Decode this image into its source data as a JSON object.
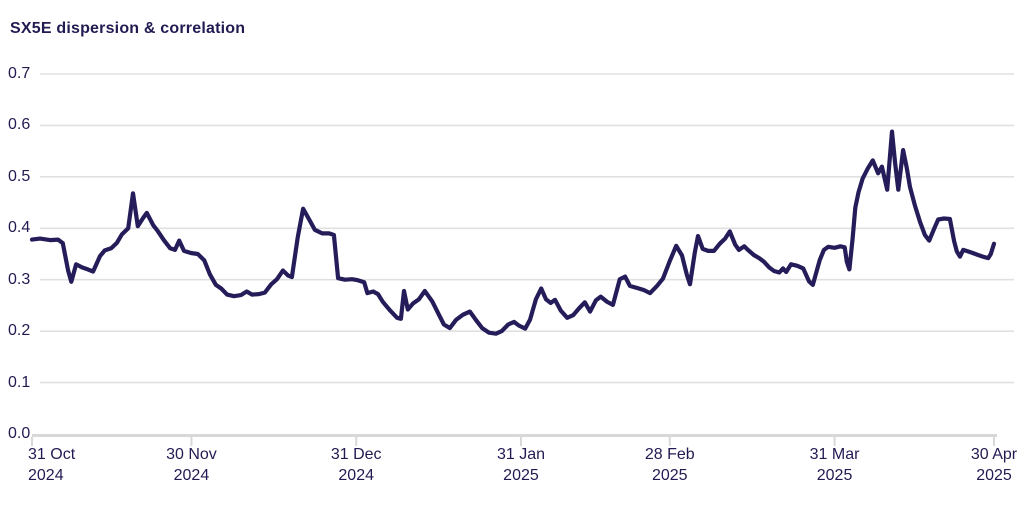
{
  "title": "SX5E dispersion & correlation",
  "colors": {
    "line": "#251d5a",
    "text": "#221b52",
    "gridline": "#e0e0e0",
    "axis": "#d8d8d8",
    "background": "#ffffff"
  },
  "chart_data": {
    "type": "line",
    "title": "SX5E dispersion & correlation",
    "xlabel": "",
    "ylabel": "",
    "ylim": [
      0,
      0.7
    ],
    "grid": "horizontal",
    "legend": "none",
    "x_unit": "days since 31 Oct 2024 (positions estimated from plot)",
    "y_ticks": [
      {
        "label": "0.0",
        "value": 0.0
      },
      {
        "label": "0.1",
        "value": 0.1
      },
      {
        "label": "0.2",
        "value": 0.2
      },
      {
        "label": "0.3",
        "value": 0.3
      },
      {
        "label": "0.4",
        "value": 0.4
      },
      {
        "label": "0.5",
        "value": 0.5
      },
      {
        "label": "0.6",
        "value": 0.6
      },
      {
        "label": "0.7",
        "value": 0.7
      }
    ],
    "x_ticks": [
      {
        "day": 0,
        "line1": "31 Oct",
        "line2": "2024",
        "align": "left"
      },
      {
        "day": 30,
        "line1": "30 Nov",
        "line2": "2024",
        "align": "center"
      },
      {
        "day": 61,
        "line1": "31 Dec",
        "line2": "2024",
        "align": "center"
      },
      {
        "day": 92,
        "line1": "31 Jan",
        "line2": "2025",
        "align": "center"
      },
      {
        "day": 120,
        "line1": "28 Feb",
        "line2": "2025",
        "align": "center"
      },
      {
        "day": 151,
        "line1": "31 Mar",
        "line2": "2025",
        "align": "center"
      },
      {
        "day": 181,
        "line1": "30 Apr",
        "line2": "2025",
        "align": "center"
      }
    ],
    "series": [
      {
        "name": "SX5E dispersion & correlation",
        "points": [
          [
            0,
            0.378
          ],
          [
            1.5,
            0.38
          ],
          [
            3.4,
            0.377
          ],
          [
            4.9,
            0.378
          ],
          [
            5.8,
            0.371
          ],
          [
            6.8,
            0.318
          ],
          [
            7.4,
            0.296
          ],
          [
            8.3,
            0.33
          ],
          [
            9.4,
            0.324
          ],
          [
            10.5,
            0.32
          ],
          [
            11.5,
            0.316
          ],
          [
            12.8,
            0.346
          ],
          [
            13.7,
            0.357
          ],
          [
            14.9,
            0.361
          ],
          [
            16,
            0.372
          ],
          [
            16.9,
            0.388
          ],
          [
            18.1,
            0.4
          ],
          [
            19,
            0.468
          ],
          [
            19.9,
            0.404
          ],
          [
            20.9,
            0.42
          ],
          [
            21.6,
            0.43
          ],
          [
            22.8,
            0.406
          ],
          [
            23.7,
            0.394
          ],
          [
            24.8,
            0.377
          ],
          [
            26,
            0.361
          ],
          [
            26.9,
            0.358
          ],
          [
            27.7,
            0.376
          ],
          [
            28.6,
            0.356
          ],
          [
            29.9,
            0.352
          ],
          [
            31.2,
            0.35
          ],
          [
            32.4,
            0.338
          ],
          [
            33.5,
            0.31
          ],
          [
            34.6,
            0.29
          ],
          [
            35.6,
            0.283
          ],
          [
            36.7,
            0.271
          ],
          [
            38,
            0.268
          ],
          [
            39.3,
            0.27
          ],
          [
            40.4,
            0.277
          ],
          [
            41.4,
            0.271
          ],
          [
            42.7,
            0.272
          ],
          [
            43.8,
            0.275
          ],
          [
            45,
            0.291
          ],
          [
            46.1,
            0.301
          ],
          [
            47.2,
            0.318
          ],
          [
            48.2,
            0.308
          ],
          [
            48.9,
            0.305
          ],
          [
            50,
            0.382
          ],
          [
            51,
            0.438
          ],
          [
            52.1,
            0.418
          ],
          [
            53.2,
            0.397
          ],
          [
            54.6,
            0.39
          ],
          [
            55.9,
            0.39
          ],
          [
            56.8,
            0.387
          ],
          [
            57.6,
            0.303
          ],
          [
            58.9,
            0.3
          ],
          [
            60.2,
            0.301
          ],
          [
            61.3,
            0.299
          ],
          [
            62.5,
            0.295
          ],
          [
            63.1,
            0.274
          ],
          [
            64.2,
            0.277
          ],
          [
            65.1,
            0.272
          ],
          [
            66,
            0.257
          ],
          [
            67.4,
            0.24
          ],
          [
            68.7,
            0.226
          ],
          [
            69.4,
            0.224
          ],
          [
            70,
            0.278
          ],
          [
            70.7,
            0.242
          ],
          [
            71.7,
            0.254
          ],
          [
            72.8,
            0.262
          ],
          [
            73.9,
            0.278
          ],
          [
            75.3,
            0.258
          ],
          [
            76.4,
            0.235
          ],
          [
            77.5,
            0.213
          ],
          [
            78.6,
            0.206
          ],
          [
            79.8,
            0.222
          ],
          [
            81.1,
            0.232
          ],
          [
            82.4,
            0.238
          ],
          [
            83.5,
            0.222
          ],
          [
            84.7,
            0.206
          ],
          [
            86,
            0.197
          ],
          [
            87.3,
            0.195
          ],
          [
            88.4,
            0.2
          ],
          [
            89.6,
            0.213
          ],
          [
            90.7,
            0.218
          ],
          [
            91.6,
            0.211
          ],
          [
            92.8,
            0.205
          ],
          [
            93.7,
            0.222
          ],
          [
            94.8,
            0.262
          ],
          [
            95.8,
            0.283
          ],
          [
            96.7,
            0.262
          ],
          [
            97.6,
            0.255
          ],
          [
            98.4,
            0.261
          ],
          [
            99.5,
            0.24
          ],
          [
            100.7,
            0.226
          ],
          [
            101.8,
            0.231
          ],
          [
            102.9,
            0.244
          ],
          [
            104,
            0.256
          ],
          [
            105,
            0.238
          ],
          [
            106.1,
            0.26
          ],
          [
            107,
            0.267
          ],
          [
            108.2,
            0.257
          ],
          [
            109.3,
            0.251
          ],
          [
            110.6,
            0.301
          ],
          [
            111.6,
            0.306
          ],
          [
            112.5,
            0.288
          ],
          [
            113.8,
            0.284
          ],
          [
            115.1,
            0.28
          ],
          [
            116.3,
            0.274
          ],
          [
            117.6,
            0.288
          ],
          [
            118.7,
            0.302
          ],
          [
            119.9,
            0.334
          ],
          [
            121.2,
            0.366
          ],
          [
            122.3,
            0.347
          ],
          [
            123.2,
            0.31
          ],
          [
            123.8,
            0.291
          ],
          [
            124.7,
            0.353
          ],
          [
            125.3,
            0.385
          ],
          [
            126.2,
            0.36
          ],
          [
            127.2,
            0.356
          ],
          [
            128.3,
            0.356
          ],
          [
            129.4,
            0.37
          ],
          [
            130.4,
            0.38
          ],
          [
            131.3,
            0.394
          ],
          [
            132.3,
            0.368
          ],
          [
            133,
            0.358
          ],
          [
            134,
            0.365
          ],
          [
            134.7,
            0.358
          ],
          [
            135.8,
            0.348
          ],
          [
            136.8,
            0.342
          ],
          [
            137.7,
            0.335
          ],
          [
            138.7,
            0.324
          ],
          [
            139.6,
            0.317
          ],
          [
            140.6,
            0.314
          ],
          [
            141.3,
            0.322
          ],
          [
            141.9,
            0.315
          ],
          [
            142.8,
            0.33
          ],
          [
            144,
            0.327
          ],
          [
            145.1,
            0.322
          ],
          [
            146.2,
            0.297
          ],
          [
            146.9,
            0.29
          ],
          [
            148.2,
            0.338
          ],
          [
            149,
            0.358
          ],
          [
            149.8,
            0.364
          ],
          [
            151,
            0.362
          ],
          [
            152.1,
            0.365
          ],
          [
            152.9,
            0.363
          ],
          [
            153.3,
            0.335
          ],
          [
            153.8,
            0.32
          ],
          [
            154.4,
            0.38
          ],
          [
            154.9,
            0.44
          ],
          [
            155.5,
            0.47
          ],
          [
            156.3,
            0.497
          ],
          [
            157.3,
            0.517
          ],
          [
            158.2,
            0.532
          ],
          [
            159.2,
            0.507
          ],
          [
            159.9,
            0.52
          ],
          [
            160.9,
            0.475
          ],
          [
            161.8,
            0.588
          ],
          [
            162.4,
            0.527
          ],
          [
            163,
            0.475
          ],
          [
            163.9,
            0.552
          ],
          [
            164.6,
            0.517
          ],
          [
            165.2,
            0.48
          ],
          [
            166.1,
            0.445
          ],
          [
            167.1,
            0.412
          ],
          [
            168,
            0.387
          ],
          [
            168.8,
            0.376
          ],
          [
            169.9,
            0.403
          ],
          [
            170.5,
            0.417
          ],
          [
            171.6,
            0.419
          ],
          [
            172.7,
            0.418
          ],
          [
            173.5,
            0.375
          ],
          [
            174,
            0.355
          ],
          [
            174.6,
            0.345
          ],
          [
            175.2,
            0.358
          ],
          [
            176.1,
            0.355
          ],
          [
            177,
            0.352
          ],
          [
            178,
            0.348
          ],
          [
            178.9,
            0.345
          ],
          [
            179.9,
            0.342
          ],
          [
            180.4,
            0.35
          ],
          [
            181,
            0.37
          ]
        ]
      }
    ]
  }
}
